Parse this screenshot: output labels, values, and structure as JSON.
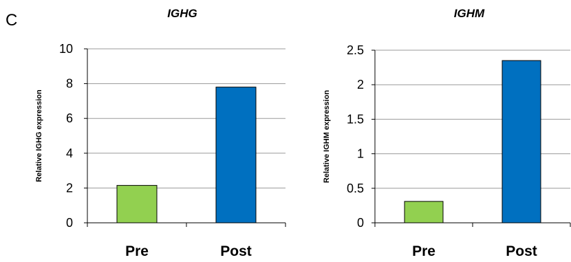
{
  "panel_label": "C",
  "chart_data": [
    {
      "type": "bar",
      "title": "IGHG",
      "ylabel": "Relative IGHG expression",
      "xlabel": "",
      "categories": [
        "Pre",
        "Post"
      ],
      "values": [
        2.15,
        7.8
      ],
      "colors": [
        "#92d050",
        "#0070c0"
      ],
      "ylim": [
        0,
        10
      ],
      "yticks": [
        "0",
        "2",
        "4",
        "6",
        "8",
        "10"
      ],
      "grid": true
    },
    {
      "type": "bar",
      "title": "IGHM",
      "ylabel": "Relative IGHM expression",
      "xlabel": "",
      "categories": [
        "Pre",
        "Post"
      ],
      "values": [
        0.31,
        2.35
      ],
      "colors": [
        "#92d050",
        "#0070c0"
      ],
      "ylim": [
        0,
        2.5
      ],
      "yticks": [
        "0",
        "0.5",
        "1",
        "1.5",
        "2",
        "2.5"
      ],
      "grid": true
    }
  ]
}
